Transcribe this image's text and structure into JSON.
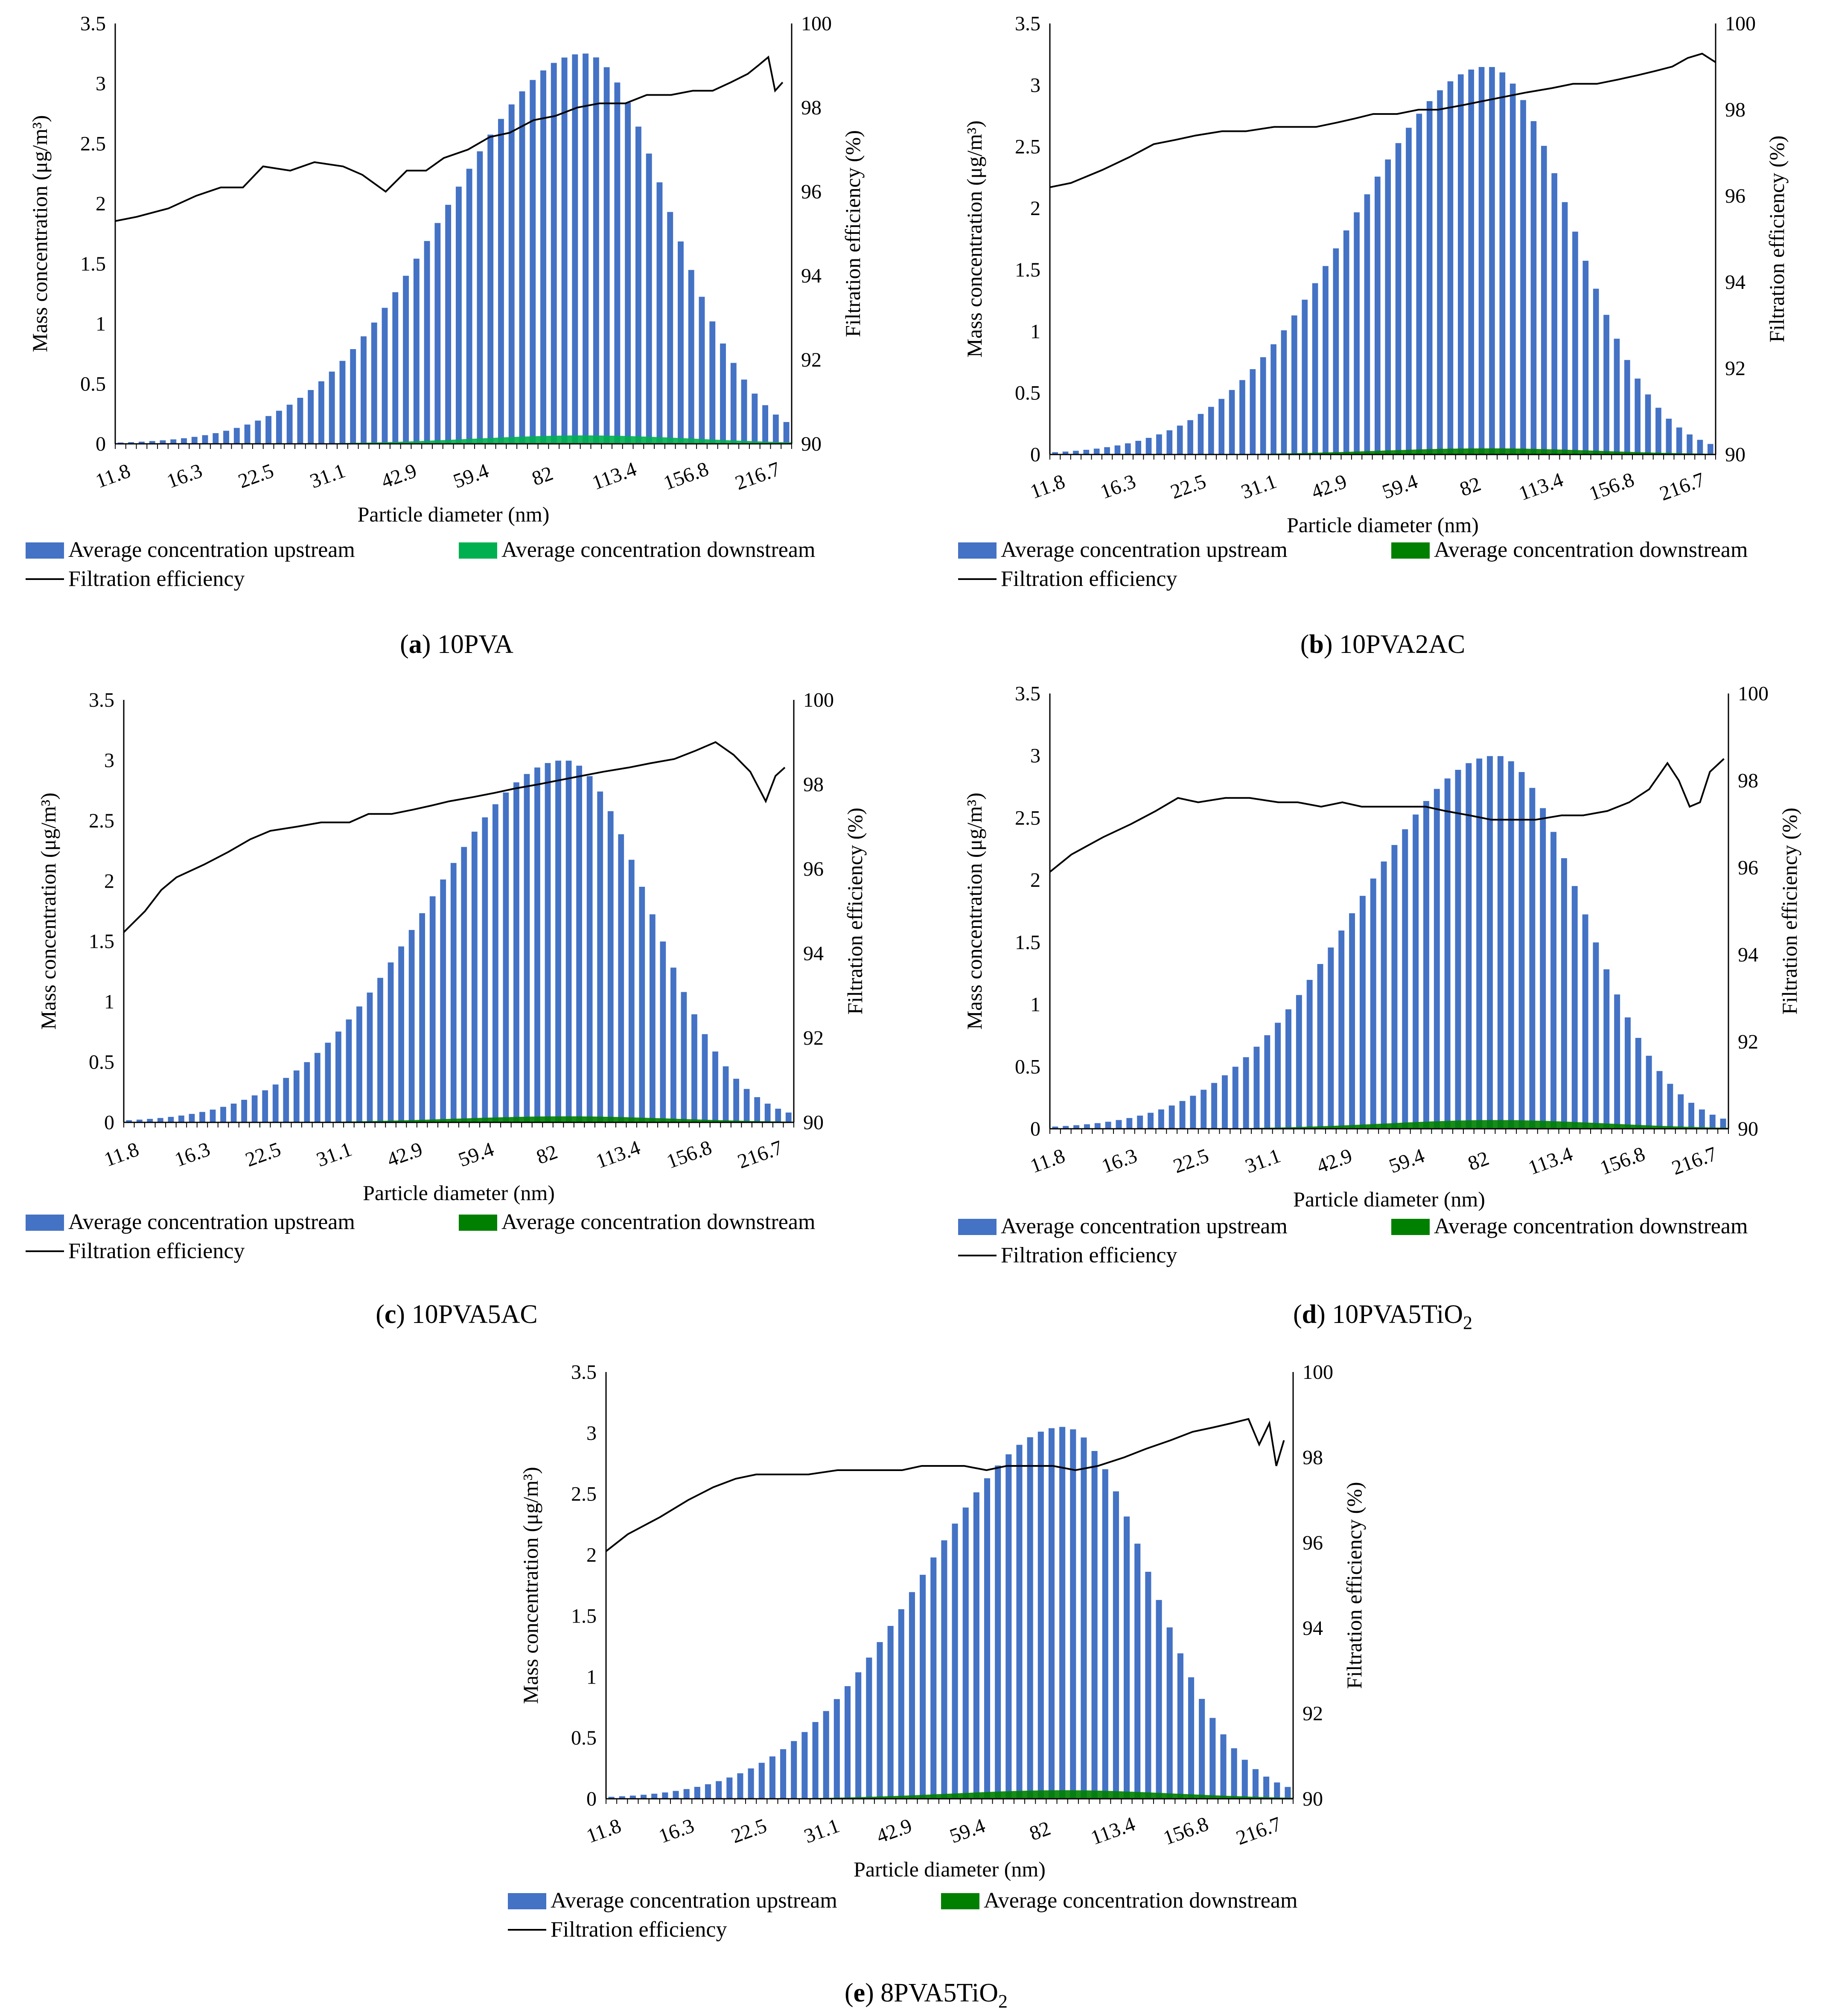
{
  "shared": {
    "xlabel": "Particle diameter (nm)",
    "ylabel_left": "Mass concentration (μg/m³)",
    "ylabel_right": "Filtration efficiency (%)",
    "x_tick_labels": [
      "11.8",
      "16.3",
      "22.5",
      "31.1",
      "42.9",
      "59.4",
      "82",
      "113.4",
      "156.8",
      "216.7"
    ],
    "y_left_ticks": [
      "0",
      "0.5",
      "1",
      "1.5",
      "2",
      "2.5",
      "3",
      "3.5"
    ],
    "y_right_ticks": [
      "90",
      "92",
      "94",
      "96",
      "98",
      "100"
    ],
    "legend": {
      "upstream": "Average concentration upstream",
      "downstream": "Average concentration downstream",
      "efficiency": "Filtration efficiency"
    },
    "colors": {
      "upstream": "#4472C4",
      "downstream_a": "#00B050",
      "downstream": "#008000",
      "efficiency": "#000000"
    }
  },
  "chart_data": [
    {
      "panel": "a",
      "caption_letter": "(a)",
      "caption_name": "10PVA",
      "type": "bar",
      "x_scale": "log",
      "x_range_nm": [
        11.8,
        250
      ],
      "ylim_left": [
        0,
        3.5
      ],
      "ylim_right": [
        90,
        100
      ],
      "series": [
        {
          "name": "Average concentration upstream",
          "kind": "bar",
          "peak_value": 3.25,
          "peak_at_nm": 98
        },
        {
          "name": "Average concentration downstream",
          "kind": "area",
          "peak_value": 0.07,
          "peak_at_nm": 98
        },
        {
          "name": "Filtration efficiency",
          "kind": "line",
          "x": [
            11.8,
            13,
            15,
            17,
            19,
            21,
            23,
            26,
            29,
            33,
            36,
            40,
            44,
            48,
            52,
            58,
            64,
            70,
            78,
            86,
            95,
            105,
            118,
            130,
            145,
            160,
            175,
            190,
            205,
            215,
            225,
            232,
            240
          ],
          "y": [
            95.3,
            95.4,
            95.6,
            95.9,
            96.1,
            96.1,
            96.6,
            96.5,
            96.7,
            96.6,
            96.4,
            96.0,
            96.5,
            96.5,
            96.8,
            97.0,
            97.3,
            97.4,
            97.7,
            97.8,
            98.0,
            98.1,
            98.1,
            98.3,
            98.3,
            98.4,
            98.4,
            98.6,
            98.8,
            99.0,
            99.2,
            98.4,
            98.6
          ]
        }
      ]
    },
    {
      "panel": "b",
      "caption_letter": "(b)",
      "caption_name": "10PVA2AC",
      "type": "bar",
      "x_scale": "log",
      "x_range_nm": [
        11.8,
        250
      ],
      "ylim_left": [
        0,
        3.5
      ],
      "ylim_right": [
        90,
        100
      ],
      "series": [
        {
          "name": "Average concentration upstream",
          "kind": "bar",
          "peak_value": 3.15,
          "peak_at_nm": 88
        },
        {
          "name": "Average concentration downstream",
          "kind": "area",
          "peak_value": 0.05,
          "peak_at_nm": 88
        },
        {
          "name": "Filtration efficiency",
          "kind": "line",
          "x": [
            11.8,
            13,
            15,
            17,
            19,
            21,
            23,
            26,
            29,
            33,
            36,
            40,
            44,
            48,
            52,
            58,
            64,
            70,
            78,
            86,
            95,
            105,
            118,
            130,
            145,
            160,
            175,
            190,
            205,
            220,
            235,
            250
          ],
          "y": [
            96.2,
            96.3,
            96.6,
            96.9,
            97.2,
            97.3,
            97.4,
            97.5,
            97.5,
            97.6,
            97.6,
            97.6,
            97.7,
            97.8,
            97.9,
            97.9,
            98.0,
            98.0,
            98.1,
            98.2,
            98.3,
            98.4,
            98.5,
            98.6,
            98.6,
            98.7,
            98.8,
            98.9,
            99.0,
            99.2,
            99.3,
            99.1
          ]
        }
      ]
    },
    {
      "panel": "c",
      "caption_letter": "(c)",
      "caption_name": "10PVA5AC",
      "type": "bar",
      "x_scale": "log",
      "x_range_nm": [
        11.8,
        250
      ],
      "ylim_left": [
        0,
        3.5
      ],
      "ylim_right": [
        90,
        100
      ],
      "series": [
        {
          "name": "Average concentration upstream",
          "kind": "bar",
          "peak_value": 3.0,
          "peak_at_nm": 88
        },
        {
          "name": "Average concentration downstream",
          "kind": "area",
          "peak_value": 0.05,
          "peak_at_nm": 88
        },
        {
          "name": "Filtration efficiency",
          "kind": "line",
          "x": [
            11.8,
            13,
            14,
            15,
            17,
            19,
            21,
            23,
            26,
            29,
            33,
            36,
            40,
            44,
            48,
            52,
            58,
            64,
            70,
            78,
            86,
            95,
            105,
            118,
            130,
            145,
            160,
            175,
            190,
            205,
            220,
            230,
            240
          ],
          "y": [
            94.5,
            95.0,
            95.5,
            95.8,
            96.1,
            96.4,
            96.7,
            96.9,
            97.0,
            97.1,
            97.1,
            97.3,
            97.3,
            97.4,
            97.5,
            97.6,
            97.7,
            97.8,
            97.9,
            98.0,
            98.1,
            98.2,
            98.3,
            98.4,
            98.5,
            98.6,
            98.8,
            99.0,
            98.7,
            98.3,
            97.6,
            98.2,
            98.4
          ]
        }
      ]
    },
    {
      "panel": "d",
      "caption_letter": "(d)",
      "caption_name": "10PVA5TiO",
      "caption_sub": "2",
      "type": "bar",
      "x_scale": "log",
      "x_range_nm": [
        11.8,
        250
      ],
      "ylim_left": [
        0,
        3.5
      ],
      "ylim_right": [
        90,
        100
      ],
      "series": [
        {
          "name": "Average concentration upstream",
          "kind": "bar",
          "peak_value": 3.0,
          "peak_at_nm": 88
        },
        {
          "name": "Average concentration downstream",
          "kind": "area",
          "peak_value": 0.07,
          "peak_at_nm": 88
        },
        {
          "name": "Filtration efficiency",
          "kind": "line",
          "x": [
            11.8,
            13,
            15,
            17,
            19,
            21,
            23,
            26,
            29,
            33,
            36,
            40,
            44,
            48,
            52,
            58,
            64,
            70,
            78,
            86,
            95,
            105,
            118,
            130,
            145,
            160,
            175,
            190,
            200,
            210,
            220,
            230,
            245
          ],
          "y": [
            95.9,
            96.3,
            96.7,
            97.0,
            97.3,
            97.6,
            97.5,
            97.6,
            97.6,
            97.5,
            97.5,
            97.4,
            97.5,
            97.4,
            97.4,
            97.4,
            97.4,
            97.3,
            97.2,
            97.1,
            97.1,
            97.1,
            97.2,
            97.2,
            97.3,
            97.5,
            97.8,
            98.4,
            98.0,
            97.4,
            97.5,
            98.2,
            98.5
          ]
        }
      ]
    },
    {
      "panel": "e",
      "caption_letter": "(e)",
      "caption_name": "8PVA5TiO",
      "caption_sub": "2",
      "type": "bar",
      "x_scale": "log",
      "x_range_nm": [
        11.8,
        250
      ],
      "ylim_left": [
        0,
        3.5
      ],
      "ylim_right": [
        90,
        100
      ],
      "series": [
        {
          "name": "Average concentration upstream",
          "kind": "bar",
          "peak_value": 3.05,
          "peak_at_nm": 90
        },
        {
          "name": "Average concentration downstream",
          "kind": "area",
          "peak_value": 0.07,
          "peak_at_nm": 90
        },
        {
          "name": "Filtration efficiency",
          "kind": "line",
          "x": [
            11.8,
            13,
            15,
            17,
            19,
            21,
            23,
            26,
            29,
            33,
            36,
            40,
            44,
            48,
            52,
            58,
            64,
            70,
            78,
            86,
            95,
            105,
            118,
            130,
            145,
            160,
            175,
            190,
            205,
            215,
            225,
            232,
            240
          ],
          "y": [
            95.8,
            96.2,
            96.6,
            97.0,
            97.3,
            97.5,
            97.6,
            97.6,
            97.6,
            97.7,
            97.7,
            97.7,
            97.7,
            97.8,
            97.8,
            97.8,
            97.7,
            97.8,
            97.8,
            97.8,
            97.7,
            97.8,
            98.0,
            98.2,
            98.4,
            98.6,
            98.7,
            98.8,
            98.9,
            98.3,
            98.8,
            97.8,
            98.4
          ]
        }
      ]
    }
  ]
}
